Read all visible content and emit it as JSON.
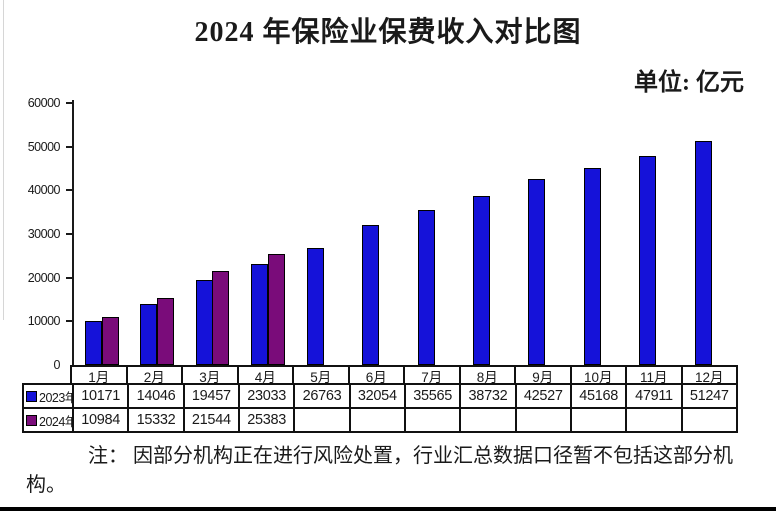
{
  "title": "2024 年保险业保费收入对比图",
  "unit_label": "单位: 亿元",
  "note": {
    "line1": "注： 因部分机构正在进行风险处置，行业汇总数据口径暂不包括这部分机",
    "line2": "构。"
  },
  "chart_data": {
    "type": "bar",
    "title": "2024 年保险业保费收入对比图",
    "unit": "亿元",
    "categories": [
      "1月",
      "2月",
      "3月",
      "4月",
      "5月",
      "6月",
      "7月",
      "8月",
      "9月",
      "10月",
      "11月",
      "12月"
    ],
    "series": [
      {
        "name": "2023年",
        "color": "#1512d9",
        "values": [
          10171,
          14046,
          19457,
          23033,
          26763,
          32054,
          35565,
          38732,
          42527,
          45168,
          47911,
          51247
        ]
      },
      {
        "name": "2024年",
        "color": "#7a0c7a",
        "values": [
          10984,
          15332,
          21544,
          25383,
          null,
          null,
          null,
          null,
          null,
          null,
          null,
          null
        ]
      }
    ],
    "ylim": [
      0,
      60000
    ],
    "ytick_step": 10000,
    "grid": false,
    "legend_position": "table-left",
    "axis_color": "#1a1a1a"
  }
}
